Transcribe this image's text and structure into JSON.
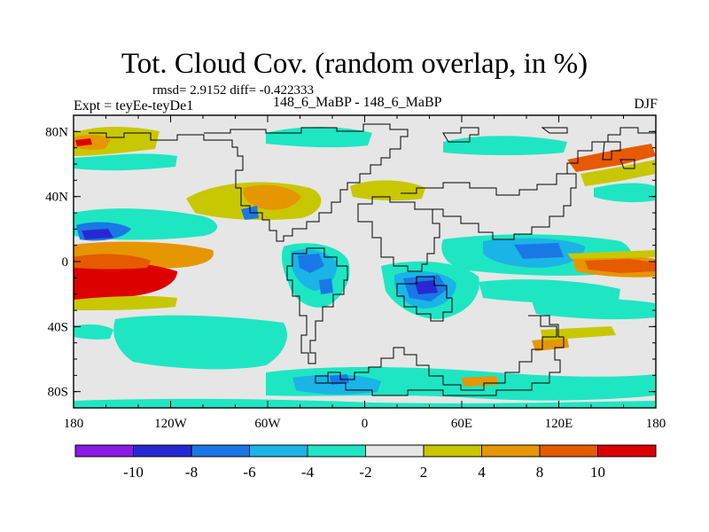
{
  "header": {
    "title": "Tot. Cloud Cov. (random overlap, in %)",
    "stats": "rmsd= 2.9152 diff= -0.422333",
    "experiment": "Expt = teyEe-teyDe1",
    "period": "148_6_MaBP - 148_6_MaBP",
    "season": "DJF"
  },
  "map": {
    "lon_range": [
      -180,
      180
    ],
    "lat_range": [
      -90,
      90
    ],
    "background_color": "#e6e6e6",
    "lat_ticks": [
      {
        "value": 80,
        "label": "80N"
      },
      {
        "value": 40,
        "label": "40N"
      },
      {
        "value": 0,
        "label": "0"
      },
      {
        "value": -40,
        "label": "40S"
      },
      {
        "value": -80,
        "label": "80S"
      }
    ],
    "lon_ticks": [
      {
        "value": -180,
        "label": "180"
      },
      {
        "value": -120,
        "label": "120W"
      },
      {
        "value": -60,
        "label": "60W"
      },
      {
        "value": 0,
        "label": "0"
      },
      {
        "value": 60,
        "label": "60E"
      },
      {
        "value": 120,
        "label": "120E"
      },
      {
        "value": 180,
        "label": "180"
      }
    ]
  },
  "colorbar": {
    "colors": [
      "#8a1ae6",
      "#2828d2",
      "#1a78e6",
      "#1ab4e6",
      "#1ee6c3",
      "#e6e6e6",
      "#c8c800",
      "#e69600",
      "#e65a00",
      "#dc0000"
    ],
    "labels": [
      "-10",
      "-8",
      "-6",
      "-4",
      "-2",
      "2",
      "4",
      "8",
      "10"
    ]
  }
}
